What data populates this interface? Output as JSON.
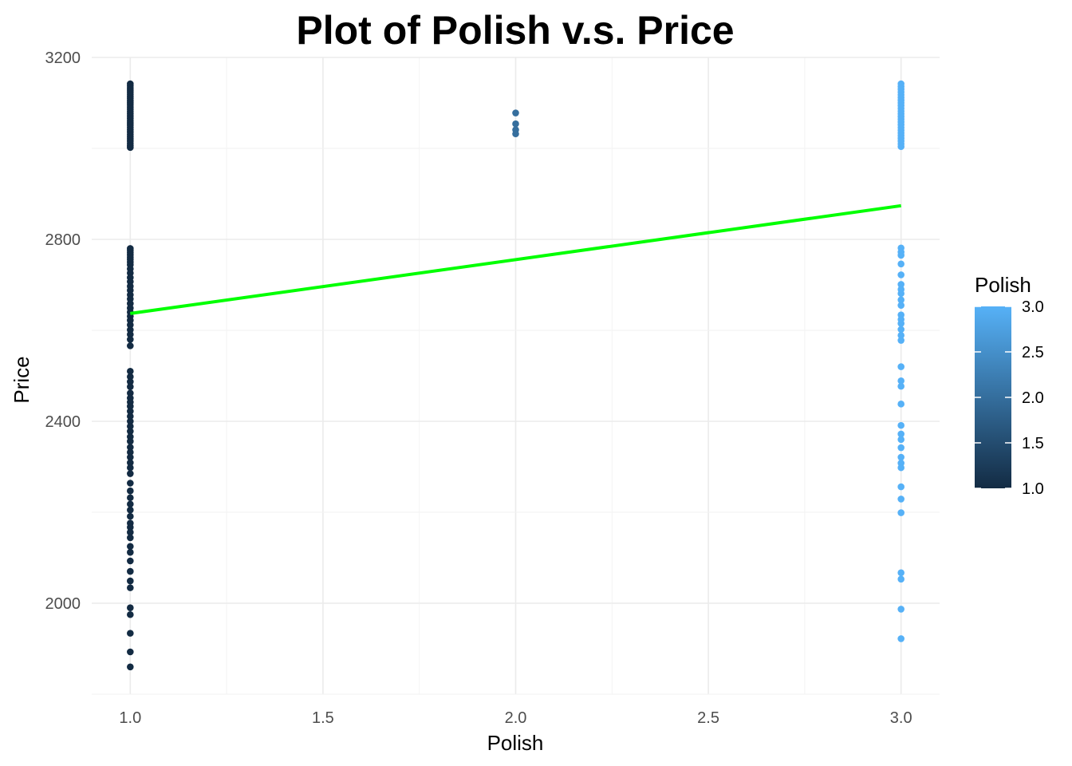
{
  "chart_data": {
    "type": "scatter",
    "title": "Plot of Polish v.s. Price",
    "xlabel": "Polish",
    "ylabel": "Price",
    "xlim": [
      0.9,
      3.1
    ],
    "ylim": [
      1800,
      3200
    ],
    "x_ticks": [
      1.0,
      1.5,
      2.0,
      2.5,
      3.0
    ],
    "x_tick_labels": [
      "1.0",
      "1.5",
      "2.0",
      "2.5",
      "3.0"
    ],
    "y_ticks": [
      2000,
      2400,
      2800,
      3200
    ],
    "y_tick_labels": [
      "2000",
      "2400",
      "2800",
      "3200"
    ],
    "grid": true,
    "legend": {
      "title": "Polish",
      "position": "right",
      "type": "colorbar",
      "range": [
        1.0,
        3.0
      ],
      "ticks": [
        1.0,
        1.5,
        2.0,
        2.5,
        3.0
      ],
      "tick_labels": [
        "1.0",
        "1.5",
        "2.0",
        "2.5",
        "3.0"
      ],
      "low_color": "#132B43",
      "high_color": "#56B1F7"
    },
    "trend_line": {
      "color": "#00FF00",
      "x": [
        1.0,
        3.0
      ],
      "y": [
        2637,
        2874
      ]
    },
    "points": {
      "x1": [
        3142,
        3138,
        3133,
        3128,
        3124,
        3119,
        3114,
        3110,
        3105,
        3100,
        3096,
        3091,
        3086,
        3081,
        3076,
        3071,
        3066,
        3061,
        3056,
        3051,
        3046,
        3041,
        3036,
        3031,
        3026,
        3021,
        3016,
        3011,
        3006,
        3002,
        2780,
        2776,
        2771,
        2766,
        2761,
        2756,
        2750,
        2744,
        2735,
        2726,
        2716,
        2707,
        2697,
        2688,
        2678,
        2669,
        2659,
        2649,
        2640,
        2631,
        2622,
        2612,
        2601,
        2591,
        2580,
        2566,
        2510,
        2498,
        2487,
        2476,
        2462,
        2451,
        2442,
        2433,
        2422,
        2411,
        2400,
        2389,
        2378,
        2366,
        2356,
        2343,
        2332,
        2321,
        2309,
        2298,
        2285,
        2264,
        2247,
        2232,
        2218,
        2205,
        2191,
        2176,
        2167,
        2156,
        2144,
        2125,
        2112,
        2093,
        2070,
        2049,
        2034,
        1990,
        1975,
        1934,
        1893,
        1860
      ],
      "x2": [
        3078,
        3054,
        3041,
        3032
      ],
      "x3": [
        3142,
        3136,
        3130,
        3124,
        3118,
        3112,
        3106,
        3100,
        3094,
        3088,
        3082,
        3076,
        3070,
        3064,
        3058,
        3052,
        3046,
        3040,
        3034,
        3028,
        3022,
        3016,
        3010,
        3004,
        2781,
        2772,
        2765,
        2746,
        2722,
        2701,
        2690,
        2681,
        2667,
        2655,
        2634,
        2624,
        2615,
        2602,
        2589,
        2578,
        2520,
        2489,
        2477,
        2438,
        2391,
        2372,
        2360,
        2342,
        2321,
        2308,
        2298,
        2256,
        2229,
        2199,
        2067,
        2053,
        1987,
        1922
      ]
    }
  }
}
